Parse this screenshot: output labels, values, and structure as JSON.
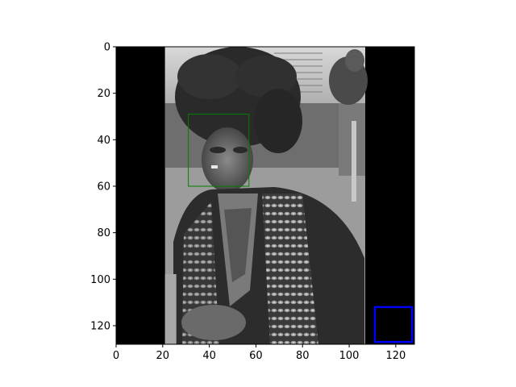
{
  "chart_data": {
    "type": "image",
    "xlim": [
      0,
      128
    ],
    "ylim": [
      128,
      0
    ],
    "x_ticks": [
      "0",
      "20",
      "40",
      "60",
      "80",
      "100",
      "120"
    ],
    "y_ticks": [
      "0",
      "20",
      "40",
      "60",
      "80",
      "100",
      "120"
    ],
    "x_tick_values": [
      0,
      20,
      40,
      60,
      80,
      100,
      120
    ],
    "y_tick_values": [
      0,
      20,
      40,
      60,
      80,
      100,
      120
    ],
    "image_region": {
      "x0": 21,
      "x1": 107,
      "y0": 0,
      "y1": 128,
      "tone": "grayscale"
    },
    "boxes": [
      {
        "label": "face-box",
        "x0": 31,
        "y0": 29,
        "x1": 57,
        "y1": 60,
        "color": "#008000"
      },
      {
        "label": "blue-box",
        "x0": 111,
        "y0": 112,
        "x1": 127,
        "y1": 127,
        "color": "#0000ff"
      }
    ]
  }
}
